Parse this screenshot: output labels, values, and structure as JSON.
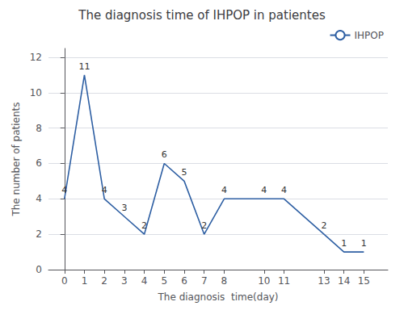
{
  "chart_data": {
    "type": "line",
    "title": "The diagnosis time of IHPOP in patientes",
    "xlabel": "The diagnosis  time(day)",
    "ylabel": "The number of patients",
    "x": [
      0,
      1,
      2,
      3,
      4,
      5,
      6,
      7,
      8,
      10,
      11,
      13,
      14,
      15
    ],
    "series": [
      {
        "name": "IHPOP",
        "color": "#2E5FA3",
        "values": [
          4,
          11,
          4,
          3,
          2,
          6,
          5,
          2,
          4,
          4,
          4,
          2,
          1,
          1
        ]
      }
    ],
    "xlim": [
      -0.8,
      16.2
    ],
    "xticks": [
      0,
      1,
      2,
      3,
      4,
      5,
      6,
      7,
      8,
      10,
      11,
      13,
      14,
      15
    ],
    "ylim": [
      0,
      12.5
    ],
    "yticks": [
      0,
      2,
      4,
      6,
      8,
      10,
      12
    ],
    "grid": true,
    "legend": "upper right",
    "data_labels": true
  }
}
